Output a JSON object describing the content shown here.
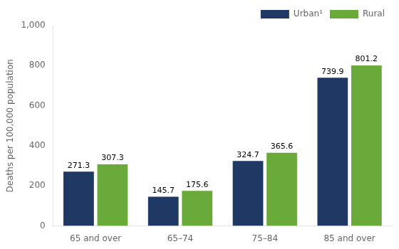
{
  "chart_data": {
    "type": "bar",
    "categories": [
      "65 and over",
      "65–74",
      "75–84",
      "85 and over"
    ],
    "series": [
      {
        "name": "Urban¹",
        "color": "#1f3864",
        "values": [
          271.3,
          145.7,
          324.7,
          739.9
        ]
      },
      {
        "name": "Rural",
        "color": "#6aaa3a",
        "values": [
          307.3,
          175.6,
          365.6,
          801.2
        ]
      }
    ],
    "ylabel": "Deaths per 100,000 population",
    "ylim": [
      0,
      1000
    ],
    "yticks": [
      0,
      200,
      400,
      600,
      800,
      {
        "value": 1000,
        "label": "1,000"
      }
    ],
    "grid": false,
    "legend": "upper right",
    "data_labels": true
  }
}
